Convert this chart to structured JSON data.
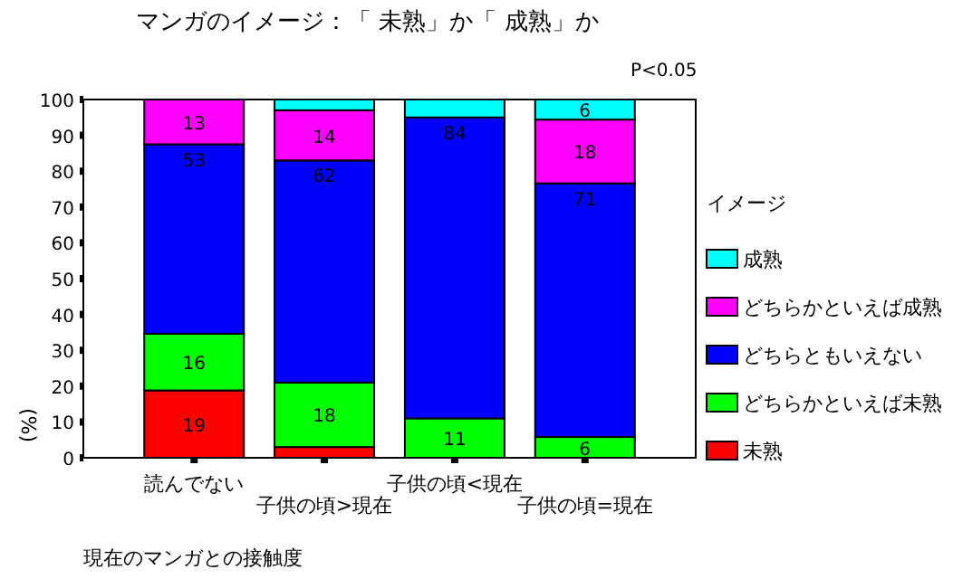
{
  "chart_data": {
    "type": "bar",
    "stacked": true,
    "title": "マンガのイメージ：「 未熟」か「 成熟」か",
    "xlabel": "現在のマンガとの接触度",
    "ylabel": "(%)",
    "legend_title": "イメージ",
    "legend": "right",
    "annotations": [
      "P<0.05"
    ],
    "categories": [
      "読んでない",
      "子供の頃>現在",
      "子供の頃<現在",
      "子供の頃=現在"
    ],
    "ylim": [
      0,
      100
    ],
    "yticks": [
      0,
      10,
      20,
      30,
      40,
      50,
      60,
      70,
      80,
      90,
      100
    ],
    "grid": false,
    "series": [
      {
        "name": "未熟",
        "color": "#ff0000",
        "values": [
          18.8,
          3,
          0,
          0
        ],
        "value_labels": [
          "19",
          null,
          null,
          null
        ]
      },
      {
        "name": "どちらかといえば未熟",
        "color": "#00ff00",
        "values": [
          15.8,
          18,
          11,
          5.8
        ],
        "value_labels": [
          "16",
          "18",
          "11",
          "6"
        ]
      },
      {
        "name": "どちらともいえない",
        "color": "#0000ff",
        "values": [
          52.9,
          62,
          84,
          70.8
        ],
        "value_labels": [
          "53",
          "62",
          "84",
          "71"
        ]
      },
      {
        "name": "どちらかといえば成熟",
        "color": "#ff00ff",
        "values": [
          12.5,
          14,
          0,
          17.8
        ],
        "value_labels": [
          "13",
          "14",
          null,
          "18"
        ]
      },
      {
        "name": "成熟",
        "color": "#00ffff",
        "values": [
          0,
          3,
          5,
          5.6
        ],
        "value_labels": [
          null,
          null,
          null,
          "6"
        ]
      }
    ]
  }
}
